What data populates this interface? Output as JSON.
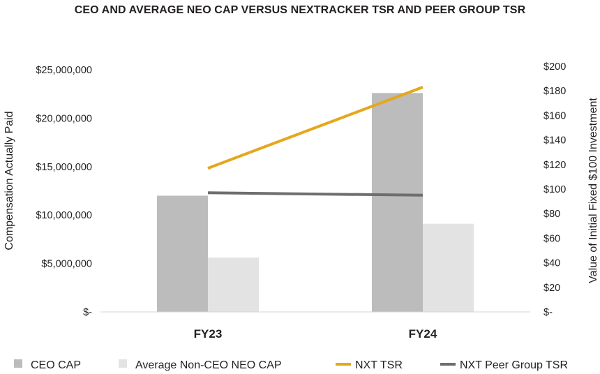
{
  "chart_data": {
    "type": "bar",
    "title": "CEO AND AVERAGE NEO CAP VERSUS NEXTRACKER TSR AND PEER GROUP TSR",
    "categories": [
      "FY23",
      "FY24"
    ],
    "series": [
      {
        "name": "CEO CAP",
        "kind": "bar",
        "axis": "left",
        "color": "#bcbcbc",
        "values": [
          12000000,
          22600000
        ]
      },
      {
        "name": "Average Non-CEO NEO CAP",
        "kind": "bar",
        "axis": "left",
        "color": "#e3e3e4",
        "values": [
          5600000,
          9100000
        ]
      },
      {
        "name": "NXT TSR",
        "kind": "line",
        "axis": "right",
        "color": "#e5a71b",
        "values": [
          117,
          183
        ]
      },
      {
        "name": "NXT Peer Group TSR",
        "kind": "line",
        "axis": "right",
        "color": "#6d6e70",
        "values": [
          97,
          95
        ]
      }
    ],
    "ylabel": "Compensation Actually Paid",
    "ylabel_right": "Value of Initial Fixed $100 Investment",
    "ylim": [
      0,
      25000000
    ],
    "ylim_right": [
      0,
      200
    ],
    "yticks": [
      "$-",
      "$5,000,000",
      "$10,000,000",
      "$15,000,000",
      "$20,000,000",
      "$25,000,000"
    ],
    "yticks_right": [
      "$-",
      "$20",
      "$40",
      "$60",
      "$80",
      "$100",
      "$120",
      "$140",
      "$160",
      "$180",
      "$200"
    ],
    "grid": false,
    "legend_position": "bottom"
  }
}
